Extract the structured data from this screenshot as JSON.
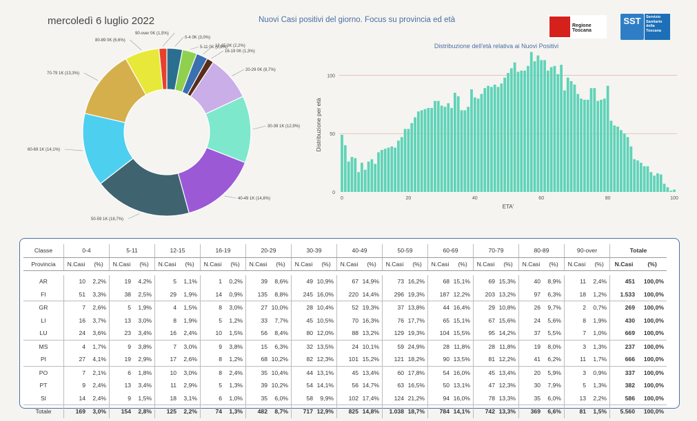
{
  "header": {
    "date": "mercoledì 6 luglio 2022",
    "title": "Nuovi Casi positivi del giorno. Focus su provincia ed età",
    "logo_rt": "Regione Toscana",
    "logo_sst_a": "SST",
    "logo_sst_b": "Servizio Sanitario della Toscana"
  },
  "colors": {
    "pie": [
      "#2a6f8f",
      "#8fd14f",
      "#3a6fb0",
      "#5a2d1a",
      "#c9aee8",
      "#7ee8cc",
      "#9b59d6",
      "#3f6470",
      "#4dcff0",
      "#d4af4c",
      "#e8e83a",
      "#e8402a"
    ],
    "hist": "#5fd3b8",
    "gridline": "#e0b9b0"
  },
  "chart_data": [
    {
      "type": "pie",
      "categories": [
        "0-4",
        "5-11",
        "12-15",
        "16-19",
        "20-29",
        "30-39",
        "40-49",
        "50-59",
        "60-69",
        "70-79",
        "80-89",
        "90-over"
      ],
      "labels": [
        "0-4 0K (3,0%)",
        "5-11 0K (2,8%)",
        "12-15 0K (2,2%)",
        "16-19 0K (1,3%)",
        "20-29 0K (8,7%)",
        "30-39 1K (12,9%)",
        "40-49 1K (14,8%)",
        "50-59 1K (18,7%)",
        "60-69 1K (14,1%)",
        "70-79 1K (13,3%)",
        "80-89 0K (6,6%)",
        "90-over 0K (1,5%)"
      ],
      "values": [
        3.0,
        2.8,
        2.2,
        1.3,
        8.7,
        12.9,
        14.8,
        18.7,
        14.1,
        13.3,
        6.6,
        1.5
      ]
    },
    {
      "type": "bar",
      "title": "Distribuzione dell'età relativa ai Nuovi Positivi",
      "xlabel": "ETA'",
      "ylabel": "Distribuzione per età",
      "xlim": [
        0,
        100
      ],
      "ylim": [
        0,
        115
      ],
      "xticks": [
        0,
        20,
        40,
        60,
        80,
        100
      ],
      "yticks": [
        0,
        50,
        100
      ],
      "x": [
        0,
        1,
        2,
        3,
        4,
        5,
        6,
        7,
        8,
        9,
        10,
        11,
        12,
        13,
        14,
        15,
        16,
        17,
        18,
        19,
        20,
        21,
        22,
        23,
        24,
        25,
        26,
        27,
        28,
        29,
        30,
        31,
        32,
        33,
        34,
        35,
        36,
        37,
        38,
        39,
        40,
        41,
        42,
        43,
        44,
        45,
        46,
        47,
        48,
        49,
        50,
        51,
        52,
        53,
        54,
        55,
        56,
        57,
        58,
        59,
        60,
        61,
        62,
        63,
        64,
        65,
        66,
        67,
        68,
        69,
        70,
        71,
        72,
        73,
        74,
        75,
        76,
        77,
        78,
        79,
        80,
        81,
        82,
        83,
        84,
        85,
        86,
        87,
        88,
        89,
        90,
        91,
        92,
        93,
        94,
        95,
        96,
        97,
        98,
        99,
        100
      ],
      "values": [
        49,
        40,
        26,
        30,
        29,
        17,
        25,
        19,
        26,
        28,
        24,
        34,
        36,
        37,
        38,
        39,
        38,
        44,
        47,
        54,
        54,
        59,
        64,
        69,
        70,
        71,
        72,
        72,
        78,
        78,
        74,
        73,
        76,
        72,
        85,
        82,
        70,
        70,
        73,
        88,
        81,
        80,
        84,
        89,
        91,
        90,
        92,
        90,
        93,
        98,
        102,
        106,
        111,
        103,
        104,
        104,
        108,
        120,
        112,
        117,
        113,
        113,
        104,
        107,
        108,
        101,
        109,
        87,
        98,
        95,
        92,
        84,
        80,
        79,
        79,
        89,
        89,
        78,
        79,
        80,
        91,
        61,
        57,
        56,
        53,
        50,
        47,
        39,
        28,
        27,
        25,
        22,
        22,
        17,
        14,
        16,
        15,
        7,
        4,
        1,
        2
      ]
    }
  ],
  "table": {
    "classes": [
      "Classe",
      "0-4",
      "5-11",
      "12-15",
      "16-19",
      "20-29",
      "30-39",
      "40-49",
      "50-59",
      "60-69",
      "70-79",
      "80-89",
      "90-over",
      "Totale"
    ],
    "subheader_label": "Provincia",
    "ncasi": "N.Casi",
    "pct": "(%)",
    "rows": [
      [
        "AR",
        "10",
        "2,2%",
        "19",
        "4,2%",
        "5",
        "1,1%",
        "1",
        "0,2%",
        "39",
        "8,6%",
        "49",
        "10,9%",
        "67",
        "14,9%",
        "73",
        "16,2%",
        "68",
        "15,1%",
        "69",
        "15,3%",
        "40",
        "8,9%",
        "11",
        "2,4%",
        "451",
        "100,0%"
      ],
      [
        "FI",
        "51",
        "3,3%",
        "38",
        "2,5%",
        "29",
        "1,9%",
        "14",
        "0,9%",
        "135",
        "8,8%",
        "245",
        "16,0%",
        "220",
        "14,4%",
        "296",
        "19,3%",
        "187",
        "12,2%",
        "203",
        "13,2%",
        "97",
        "6,3%",
        "18",
        "1,2%",
        "1.533",
        "100,0%"
      ],
      [
        "GR",
        "7",
        "2,6%",
        "5",
        "1,9%",
        "4",
        "1,5%",
        "8",
        "3,0%",
        "27",
        "10,0%",
        "28",
        "10,4%",
        "52",
        "19,3%",
        "37",
        "13,8%",
        "44",
        "16,4%",
        "29",
        "10,8%",
        "26",
        "9,7%",
        "2",
        "0,7%",
        "269",
        "100,0%"
      ],
      [
        "LI",
        "16",
        "3,7%",
        "13",
        "3,0%",
        "8",
        "1,9%",
        "5",
        "1,2%",
        "33",
        "7,7%",
        "45",
        "10,5%",
        "70",
        "16,3%",
        "76",
        "17,7%",
        "65",
        "15,1%",
        "67",
        "15,6%",
        "24",
        "5,6%",
        "8",
        "1,9%",
        "430",
        "100,0%"
      ],
      [
        "LU",
        "24",
        "3,6%",
        "23",
        "3,4%",
        "16",
        "2,4%",
        "10",
        "1,5%",
        "56",
        "8,4%",
        "80",
        "12,0%",
        "88",
        "13,2%",
        "129",
        "19,3%",
        "104",
        "15,5%",
        "95",
        "14,2%",
        "37",
        "5,5%",
        "7",
        "1,0%",
        "669",
        "100,0%"
      ],
      [
        "MS",
        "4",
        "1,7%",
        "9",
        "3,8%",
        "7",
        "3,0%",
        "9",
        "3,8%",
        "15",
        "6,3%",
        "32",
        "13,5%",
        "24",
        "10,1%",
        "59",
        "24,9%",
        "28",
        "11,8%",
        "28",
        "11,8%",
        "19",
        "8,0%",
        "3",
        "1,3%",
        "237",
        "100,0%"
      ],
      [
        "PI",
        "27",
        "4,1%",
        "19",
        "2,9%",
        "17",
        "2,6%",
        "8",
        "1,2%",
        "68",
        "10,2%",
        "82",
        "12,3%",
        "101",
        "15,2%",
        "121",
        "18,2%",
        "90",
        "13,5%",
        "81",
        "12,2%",
        "41",
        "6,2%",
        "11",
        "1,7%",
        "666",
        "100,0%"
      ],
      [
        "PO",
        "7",
        "2,1%",
        "6",
        "1,8%",
        "10",
        "3,0%",
        "8",
        "2,4%",
        "35",
        "10,4%",
        "44",
        "13,1%",
        "45",
        "13,4%",
        "60",
        "17,8%",
        "54",
        "16,0%",
        "45",
        "13,4%",
        "20",
        "5,9%",
        "3",
        "0,9%",
        "337",
        "100,0%"
      ],
      [
        "PT",
        "9",
        "2,4%",
        "13",
        "3,4%",
        "11",
        "2,9%",
        "5",
        "1,3%",
        "39",
        "10,2%",
        "54",
        "14,1%",
        "56",
        "14,7%",
        "63",
        "16,5%",
        "50",
        "13,1%",
        "47",
        "12,3%",
        "30",
        "7,9%",
        "5",
        "1,3%",
        "382",
        "100,0%"
      ],
      [
        "SI",
        "14",
        "2,4%",
        "9",
        "1,5%",
        "18",
        "3,1%",
        "6",
        "1,0%",
        "35",
        "6,0%",
        "58",
        "9,9%",
        "102",
        "17,4%",
        "124",
        "21,2%",
        "94",
        "16,0%",
        "78",
        "13,3%",
        "35",
        "6,0%",
        "13",
        "2,2%",
        "586",
        "100,0%"
      ],
      [
        "Totale",
        "169",
        "3,0%",
        "154",
        "2,8%",
        "125",
        "2,2%",
        "74",
        "1,3%",
        "482",
        "8,7%",
        "717",
        "12,9%",
        "825",
        "14,8%",
        "1.038",
        "18,7%",
        "784",
        "14,1%",
        "742",
        "13,3%",
        "369",
        "6,6%",
        "81",
        "1,5%",
        "5.560",
        "100,0%"
      ]
    ]
  }
}
